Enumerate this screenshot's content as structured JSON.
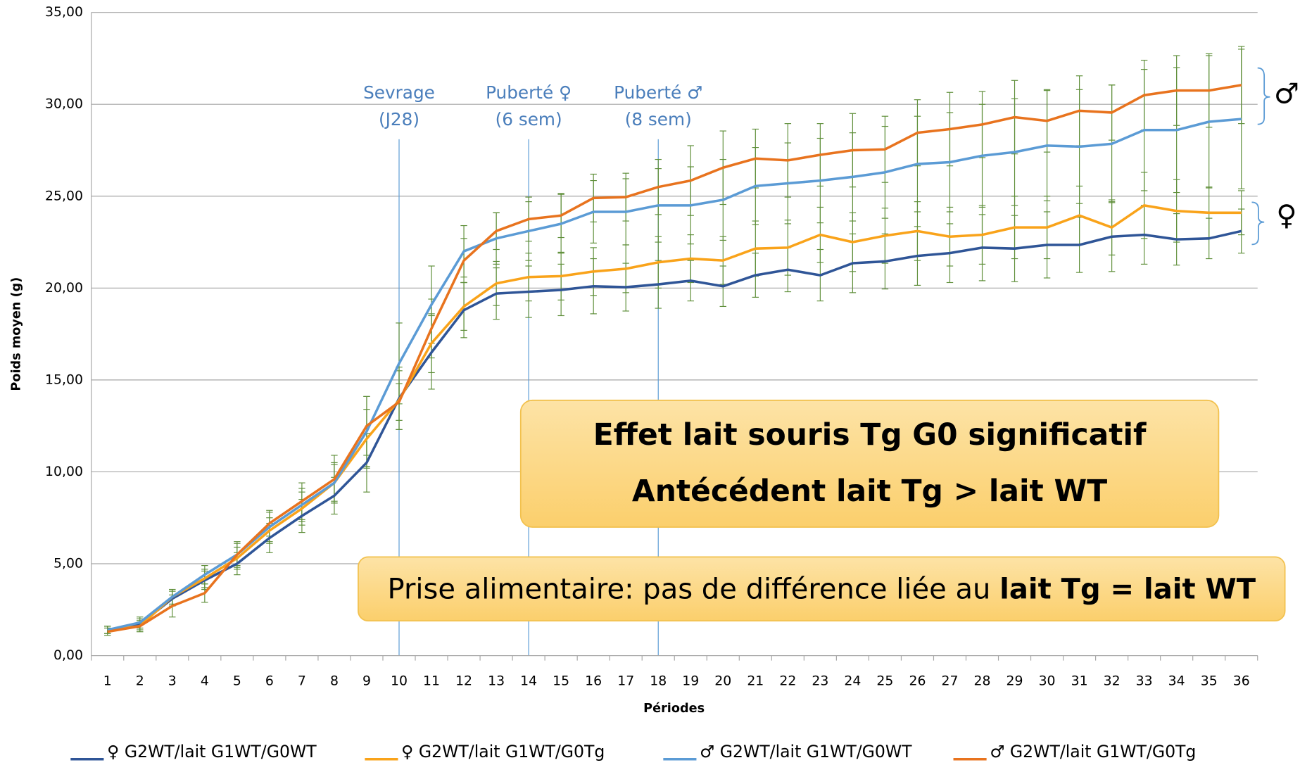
{
  "chart_data": {
    "type": "line",
    "y_label": "Poids moyen (g)",
    "x_label": "Périodes",
    "categories": [
      1,
      2,
      3,
      4,
      5,
      6,
      7,
      8,
      9,
      10,
      11,
      12,
      13,
      14,
      15,
      16,
      17,
      18,
      19,
      20,
      21,
      22,
      23,
      24,
      25,
      26,
      27,
      28,
      29,
      30,
      31,
      32,
      33,
      34,
      35,
      36
    ],
    "ylim": [
      0,
      35
    ],
    "yticks": [
      {
        "value": 0,
        "label": "0,00"
      },
      {
        "value": 5,
        "label": "5,00"
      },
      {
        "value": 10,
        "label": "10,00"
      },
      {
        "value": 15,
        "label": "15,00"
      },
      {
        "value": 20,
        "label": "20,00"
      },
      {
        "value": 25,
        "label": "25,00"
      },
      {
        "value": 30,
        "label": "30,00"
      },
      {
        "value": 35,
        "label": "35,00"
      }
    ],
    "grid": true,
    "error_color": "#5f8f3a",
    "series": [
      {
        "name": "♀ G2WT/lait G1WT/G0WT",
        "color": "#2f5597",
        "values": [
          1.4,
          1.7,
          3.1,
          4.1,
          5.0,
          6.4,
          7.6,
          8.7,
          10.5,
          14.0,
          16.5,
          18.8,
          19.7,
          19.8,
          19.9,
          20.1,
          20.05,
          20.2,
          20.4,
          20.1,
          20.7,
          21.0,
          20.7,
          21.35,
          21.45,
          21.75,
          21.9,
          22.2,
          22.15,
          22.35,
          22.35,
          22.8,
          22.9,
          22.65,
          22.7,
          23.1
        ],
        "errors": [
          0.2,
          0.3,
          0.4,
          0.5,
          0.6,
          0.8,
          0.9,
          1.0,
          1.6,
          1.7,
          2.0,
          1.5,
          1.4,
          1.4,
          1.4,
          1.5,
          1.3,
          1.3,
          1.1,
          1.1,
          1.2,
          1.2,
          1.4,
          1.6,
          1.5,
          1.6,
          1.6,
          1.8,
          1.8,
          1.8,
          1.5,
          1.9,
          1.6,
          1.4,
          1.1,
          1.2
        ]
      },
      {
        "name": "♀ G2WT/lait G1WT/G0Tg",
        "color": "#f9a31a",
        "values": [
          1.4,
          1.6,
          3.2,
          4.2,
          5.3,
          6.8,
          8.0,
          9.4,
          11.8,
          13.9,
          17.0,
          19.0,
          20.25,
          20.6,
          20.65,
          20.9,
          21.05,
          21.4,
          21.6,
          21.5,
          22.15,
          22.2,
          22.9,
          22.5,
          22.85,
          23.1,
          22.8,
          22.9,
          23.3,
          23.3,
          23.95,
          23.3,
          24.5,
          24.2,
          24.1,
          24.1
        ],
        "errors": [
          0.2,
          0.3,
          0.4,
          0.5,
          0.6,
          0.7,
          0.9,
          1.0,
          1.6,
          1.6,
          1.6,
          1.3,
          1.2,
          1.3,
          1.3,
          1.3,
          1.3,
          1.4,
          1.3,
          1.3,
          1.5,
          1.5,
          1.5,
          1.6,
          1.5,
          1.6,
          1.6,
          1.6,
          1.7,
          1.7,
          1.6,
          1.5,
          1.8,
          1.7,
          1.4,
          1.2
        ]
      },
      {
        "name": "♂ G2WT/lait G1WT/G0WT",
        "color": "#5b9bd5",
        "values": [
          1.4,
          1.8,
          3.2,
          4.4,
          5.5,
          7.0,
          8.2,
          9.4,
          12.2,
          15.9,
          19.1,
          22.0,
          22.7,
          23.1,
          23.5,
          24.15,
          24.15,
          24.5,
          24.5,
          24.8,
          25.55,
          25.7,
          25.85,
          26.05,
          26.3,
          26.75,
          26.85,
          27.2,
          27.4,
          27.75,
          27.7,
          27.85,
          28.6,
          28.6,
          29.05,
          29.2
        ],
        "errors": [
          0.2,
          0.3,
          0.4,
          0.5,
          0.6,
          0.8,
          0.9,
          1.1,
          1.9,
          2.2,
          2.1,
          1.4,
          1.4,
          1.6,
          1.6,
          1.7,
          1.8,
          2.0,
          2.1,
          2.2,
          2.1,
          2.2,
          2.3,
          2.4,
          2.5,
          2.6,
          2.7,
          2.8,
          2.9,
          3.0,
          3.1,
          3.2,
          3.3,
          3.4,
          3.6,
          3.8
        ]
      },
      {
        "name": "♂ G2WT/lait G1WT/G0Tg",
        "color": "#e8731e",
        "values": [
          1.3,
          1.6,
          2.7,
          3.4,
          5.5,
          7.2,
          8.4,
          9.6,
          12.5,
          13.8,
          17.8,
          21.5,
          23.1,
          23.75,
          23.95,
          24.9,
          24.95,
          25.5,
          25.85,
          26.55,
          27.05,
          26.95,
          27.25,
          27.5,
          27.55,
          28.45,
          28.65,
          28.9,
          29.3,
          29.1,
          29.65,
          29.55,
          30.5,
          30.75,
          30.75,
          31.05
        ],
        "errors": [
          0.2,
          0.3,
          0.6,
          0.5,
          0.7,
          0.7,
          1.0,
          1.3,
          1.6,
          1.0,
          1.6,
          1.2,
          1.0,
          1.2,
          1.2,
          1.3,
          1.3,
          1.5,
          1.9,
          2.0,
          1.6,
          2.0,
          1.7,
          2.0,
          1.8,
          1.8,
          2.0,
          1.8,
          2.0,
          1.7,
          1.9,
          1.5,
          1.9,
          1.9,
          2.0,
          2.1
        ]
      }
    ],
    "annotations": [
      {
        "x": 10,
        "lines": [
          "Sevrage",
          "(J28)"
        ]
      },
      {
        "x": 14,
        "lines": [
          "Puberté ♀",
          "(6 sem)"
        ]
      },
      {
        "x": 18,
        "lines": [
          "Puberté ♂",
          "(8 sem)"
        ]
      }
    ],
    "box_1": [
      "Effet lait souris Tg G0 significatif",
      "Antécédent lait Tg > lait WT"
    ],
    "box_2": {
      "text": "Prise alimentaire: pas de différence liée au ",
      "bold": "lait Tg = lait WT"
    },
    "bracket_labels": [
      "♂",
      "♀"
    ]
  }
}
